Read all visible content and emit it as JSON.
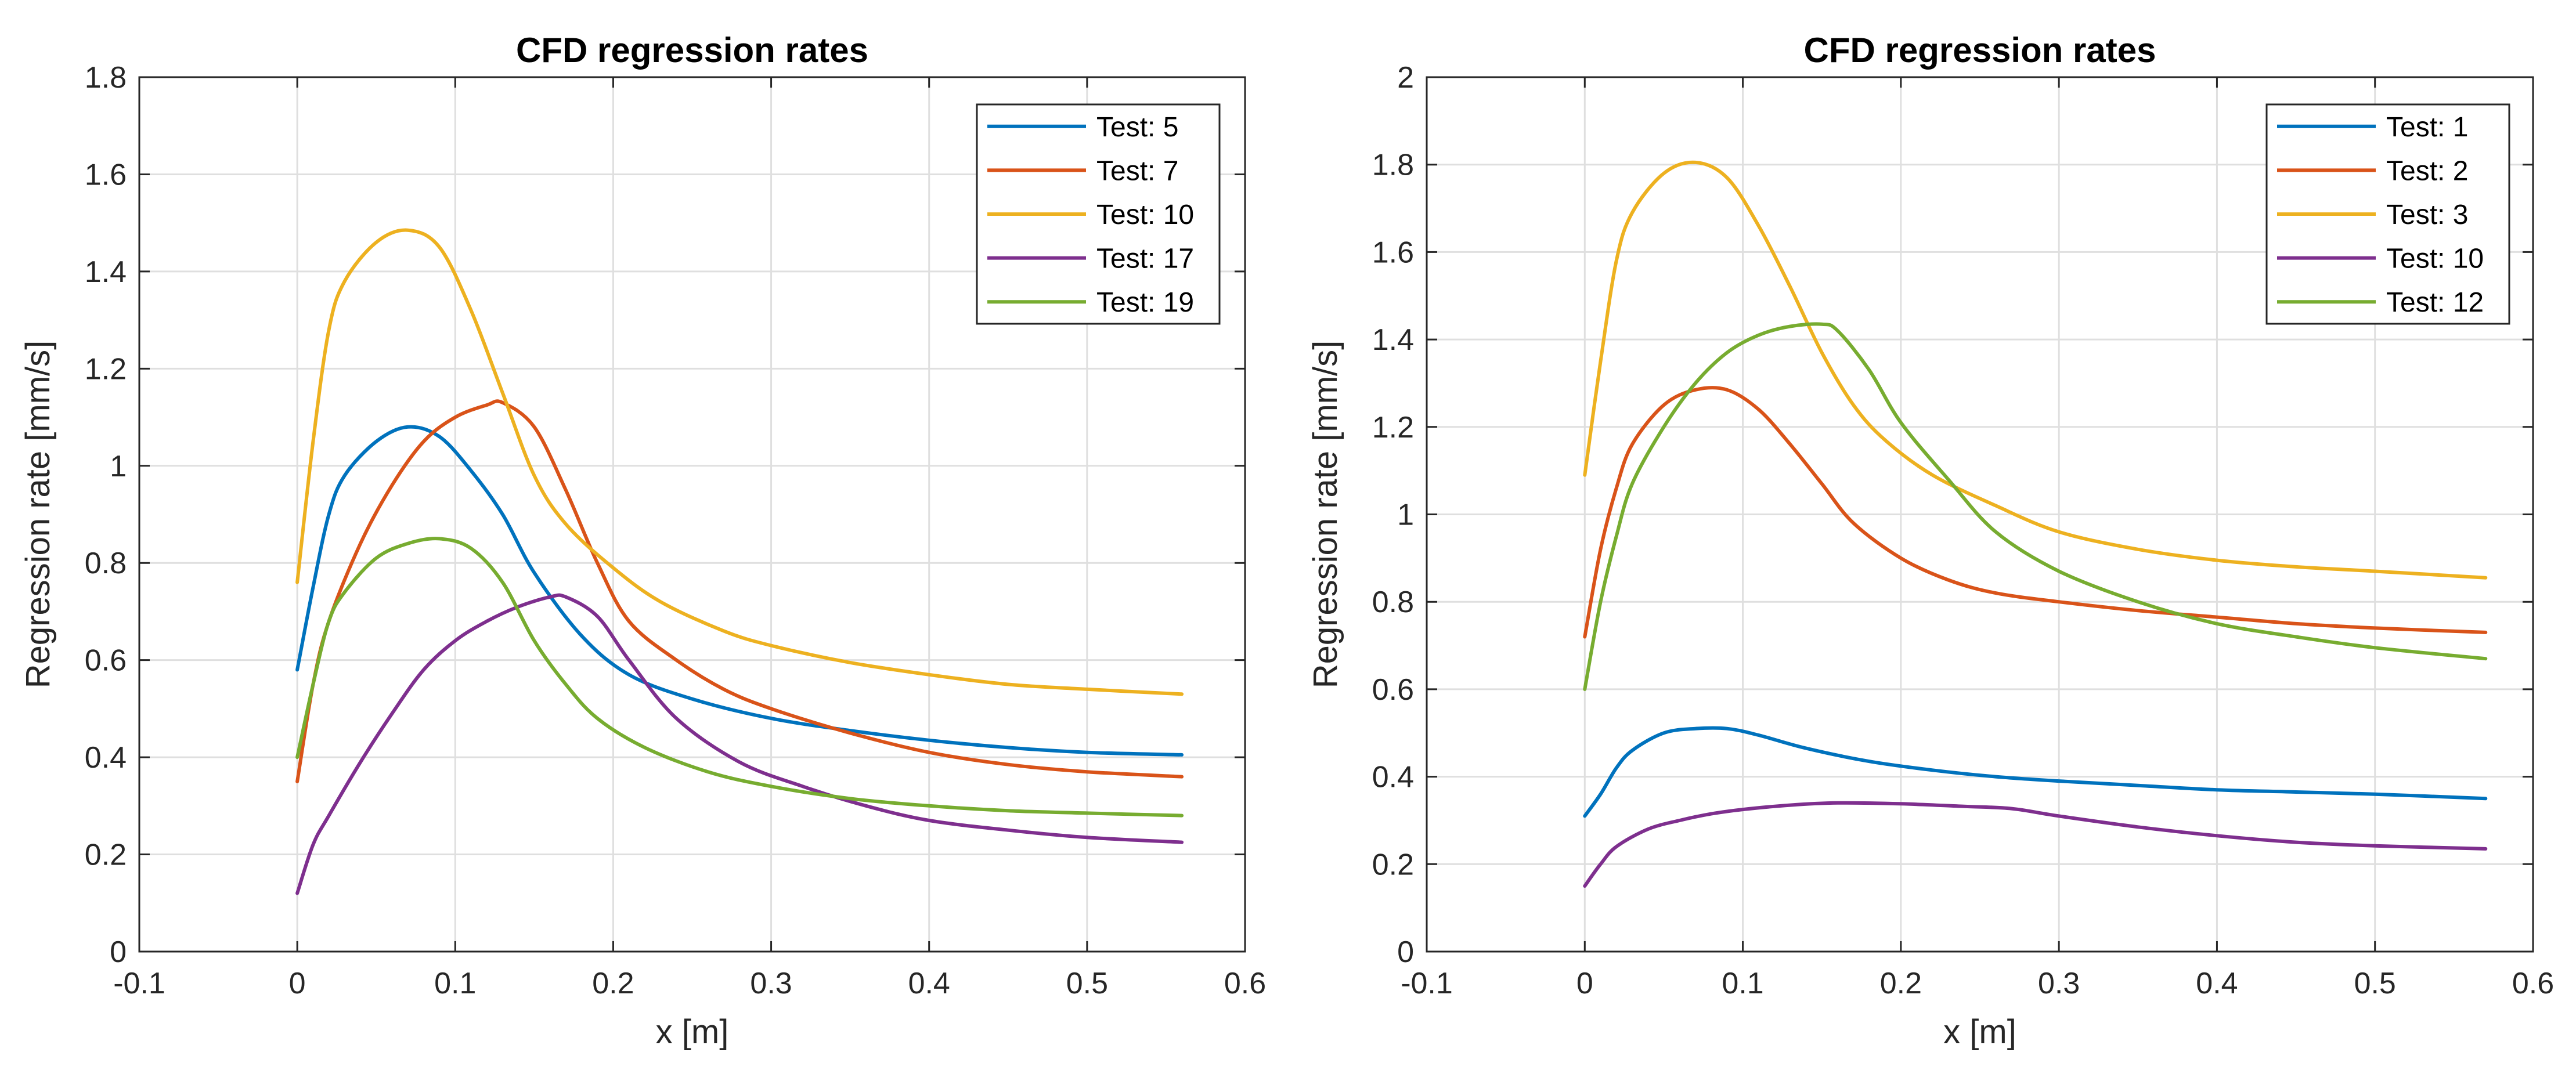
{
  "colors": {
    "blue": "#0072BD",
    "orange": "#D95319",
    "yellow": "#EDB120",
    "purple": "#7E2F8E",
    "green": "#77AC30",
    "grid": "#dfdfdf",
    "axis": "#262626"
  },
  "chart_data": [
    {
      "type": "line",
      "title": "CFD regression rates",
      "xlabel": "x [m]",
      "ylabel": "Regression rate [mm/s]",
      "xlim": [
        -0.1,
        0.6
      ],
      "ylim": [
        0,
        1.8
      ],
      "xticks": [
        -0.1,
        0,
        0.1,
        0.2,
        0.3,
        0.4,
        0.5,
        0.6
      ],
      "xtick_labels": [
        "-0.1",
        "0",
        "0.1",
        "0.2",
        "0.3",
        "0.4",
        "0.5",
        "0.6"
      ],
      "yticks": [
        0,
        0.2,
        0.4,
        0.6,
        0.8,
        1.0,
        1.2,
        1.4,
        1.6,
        1.8
      ],
      "ytick_labels": [
        "0",
        "0.2",
        "0.4",
        "0.6",
        "0.8",
        "1",
        "1.2",
        "1.4",
        "1.6",
        "1.8"
      ],
      "grid": true,
      "legend_position": "top-right",
      "series": [
        {
          "name": "Test: 5",
          "color": "#0072BD",
          "x": [
            0,
            0.01,
            0.02,
            0.03,
            0.05,
            0.07,
            0.09,
            0.11,
            0.13,
            0.15,
            0.18,
            0.21,
            0.25,
            0.3,
            0.35,
            0.4,
            0.45,
            0.5,
            0.56
          ],
          "y": [
            0.58,
            0.75,
            0.9,
            0.98,
            1.05,
            1.08,
            1.06,
            0.99,
            0.9,
            0.78,
            0.65,
            0.57,
            0.52,
            0.48,
            0.455,
            0.435,
            0.42,
            0.41,
            0.405
          ]
        },
        {
          "name": "Test: 7",
          "color": "#D95319",
          "x": [
            0,
            0.01,
            0.02,
            0.04,
            0.06,
            0.08,
            0.1,
            0.12,
            0.13,
            0.15,
            0.17,
            0.19,
            0.21,
            0.24,
            0.27,
            0.3,
            0.35,
            0.4,
            0.45,
            0.5,
            0.56
          ],
          "y": [
            0.35,
            0.55,
            0.68,
            0.84,
            0.96,
            1.05,
            1.1,
            1.125,
            1.13,
            1.08,
            0.95,
            0.8,
            0.68,
            0.6,
            0.54,
            0.5,
            0.45,
            0.41,
            0.385,
            0.37,
            0.36
          ]
        },
        {
          "name": "Test: 10",
          "color": "#EDB120",
          "x": [
            0,
            0.01,
            0.02,
            0.03,
            0.05,
            0.07,
            0.09,
            0.11,
            0.13,
            0.15,
            0.17,
            0.2,
            0.23,
            0.27,
            0.3,
            0.35,
            0.4,
            0.45,
            0.5,
            0.56
          ],
          "y": [
            0.76,
            1.05,
            1.28,
            1.38,
            1.46,
            1.485,
            1.45,
            1.32,
            1.15,
            0.98,
            0.88,
            0.79,
            0.72,
            0.66,
            0.63,
            0.595,
            0.57,
            0.55,
            0.54,
            0.53
          ]
        },
        {
          "name": "Test: 17",
          "color": "#7E2F8E",
          "x": [
            0,
            0.01,
            0.02,
            0.04,
            0.06,
            0.08,
            0.1,
            0.12,
            0.14,
            0.16,
            0.17,
            0.19,
            0.21,
            0.24,
            0.28,
            0.32,
            0.36,
            0.4,
            0.45,
            0.5,
            0.56
          ],
          "y": [
            0.12,
            0.22,
            0.28,
            0.39,
            0.49,
            0.58,
            0.64,
            0.68,
            0.71,
            0.73,
            0.73,
            0.69,
            0.6,
            0.48,
            0.39,
            0.34,
            0.3,
            0.27,
            0.25,
            0.235,
            0.225
          ]
        },
        {
          "name": "Test: 19",
          "color": "#77AC30",
          "x": [
            0,
            0.01,
            0.02,
            0.03,
            0.05,
            0.07,
            0.09,
            0.11,
            0.13,
            0.15,
            0.17,
            0.19,
            0.22,
            0.26,
            0.3,
            0.35,
            0.4,
            0.45,
            0.5,
            0.56
          ],
          "y": [
            0.4,
            0.55,
            0.68,
            0.74,
            0.81,
            0.84,
            0.85,
            0.83,
            0.76,
            0.64,
            0.55,
            0.48,
            0.42,
            0.37,
            0.34,
            0.315,
            0.3,
            0.29,
            0.285,
            0.28
          ]
        }
      ]
    },
    {
      "type": "line",
      "title": "CFD regression rates",
      "xlabel": "x [m]",
      "ylabel": "Regression rate [mm/s]",
      "xlim": [
        -0.1,
        0.6
      ],
      "ylim": [
        0,
        2
      ],
      "xticks": [
        -0.1,
        0,
        0.1,
        0.2,
        0.3,
        0.4,
        0.5,
        0.6
      ],
      "xtick_labels": [
        "-0.1",
        "0",
        "0.1",
        "0.2",
        "0.3",
        "0.4",
        "0.5",
        "0.6"
      ],
      "yticks": [
        0,
        0.2,
        0.4,
        0.6,
        0.8,
        1.0,
        1.2,
        1.4,
        1.6,
        1.8,
        2.0
      ],
      "ytick_labels": [
        "0",
        "0.2",
        "0.4",
        "0.6",
        "0.8",
        "1",
        "1.2",
        "1.4",
        "1.6",
        "1.8",
        "2"
      ],
      "grid": true,
      "legend_position": "top-right",
      "series": [
        {
          "name": "Test: 1",
          "color": "#0072BD",
          "x": [
            0,
            0.01,
            0.02,
            0.03,
            0.05,
            0.07,
            0.09,
            0.11,
            0.14,
            0.18,
            0.22,
            0.26,
            0.3,
            0.35,
            0.4,
            0.45,
            0.5,
            0.57
          ],
          "y": [
            0.31,
            0.36,
            0.42,
            0.46,
            0.5,
            0.51,
            0.51,
            0.495,
            0.465,
            0.435,
            0.415,
            0.4,
            0.39,
            0.38,
            0.37,
            0.365,
            0.36,
            0.35
          ]
        },
        {
          "name": "Test: 2",
          "color": "#D95319",
          "x": [
            0,
            0.01,
            0.02,
            0.03,
            0.05,
            0.07,
            0.09,
            0.11,
            0.13,
            0.15,
            0.17,
            0.2,
            0.23,
            0.26,
            0.3,
            0.35,
            0.4,
            0.45,
            0.5,
            0.57
          ],
          "y": [
            0.72,
            0.92,
            1.06,
            1.16,
            1.25,
            1.285,
            1.285,
            1.24,
            1.16,
            1.07,
            0.98,
            0.9,
            0.85,
            0.82,
            0.8,
            0.78,
            0.765,
            0.75,
            0.74,
            0.73
          ]
        },
        {
          "name": "Test: 3",
          "color": "#EDB120",
          "x": [
            0,
            0.01,
            0.02,
            0.03,
            0.05,
            0.07,
            0.09,
            0.11,
            0.13,
            0.15,
            0.17,
            0.19,
            0.22,
            0.26,
            0.3,
            0.35,
            0.4,
            0.45,
            0.5,
            0.57
          ],
          "y": [
            1.09,
            1.35,
            1.58,
            1.69,
            1.78,
            1.805,
            1.77,
            1.66,
            1.52,
            1.37,
            1.25,
            1.17,
            1.09,
            1.02,
            0.96,
            0.92,
            0.895,
            0.88,
            0.87,
            0.855
          ]
        },
        {
          "name": "Test: 10",
          "color": "#7E2F8E",
          "x": [
            0,
            0.01,
            0.02,
            0.04,
            0.06,
            0.08,
            0.1,
            0.13,
            0.16,
            0.2,
            0.24,
            0.27,
            0.3,
            0.35,
            0.4,
            0.45,
            0.5,
            0.57
          ],
          "y": [
            0.15,
            0.2,
            0.24,
            0.28,
            0.3,
            0.315,
            0.325,
            0.335,
            0.34,
            0.338,
            0.332,
            0.327,
            0.31,
            0.285,
            0.265,
            0.25,
            0.242,
            0.235
          ]
        },
        {
          "name": "Test: 12",
          "color": "#77AC30",
          "x": [
            0,
            0.01,
            0.02,
            0.03,
            0.05,
            0.07,
            0.09,
            0.11,
            0.13,
            0.15,
            0.16,
            0.18,
            0.2,
            0.23,
            0.26,
            0.3,
            0.35,
            0.4,
            0.45,
            0.5,
            0.57
          ],
          "y": [
            0.6,
            0.8,
            0.95,
            1.07,
            1.2,
            1.3,
            1.37,
            1.41,
            1.43,
            1.435,
            1.42,
            1.33,
            1.21,
            1.08,
            0.96,
            0.87,
            0.8,
            0.75,
            0.72,
            0.695,
            0.67
          ]
        }
      ]
    }
  ]
}
